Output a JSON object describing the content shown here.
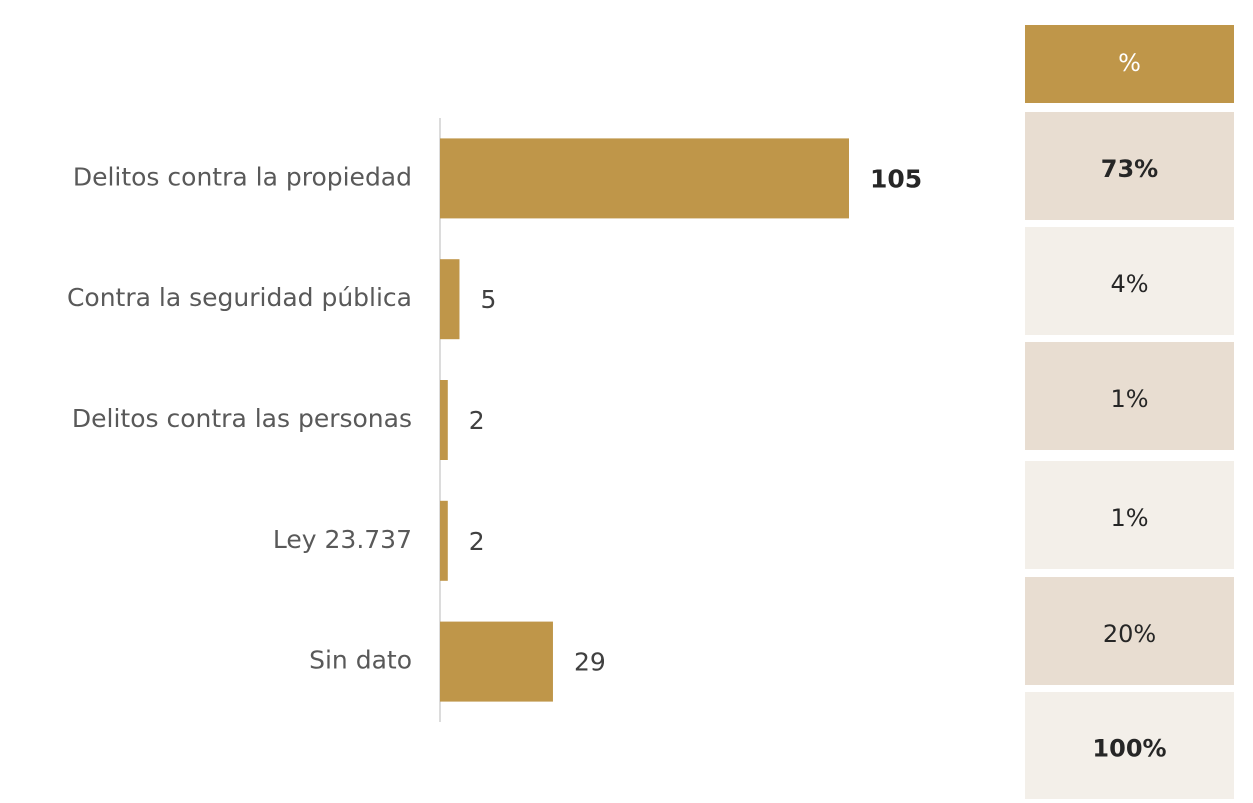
{
  "chart_data": {
    "type": "bar",
    "orientation": "horizontal",
    "categories": [
      "Delitos contra la propiedad",
      "Contra la seguridad pública",
      "Delitos contra las personas",
      "Ley 23.737",
      "Sin dato"
    ],
    "values": [
      105,
      5,
      2,
      2,
      29
    ],
    "color": "#bf9649"
  },
  "table": {
    "header": "%",
    "rows": [
      "73%",
      "4%",
      "1%",
      "1%",
      "20%",
      "100%"
    ]
  }
}
